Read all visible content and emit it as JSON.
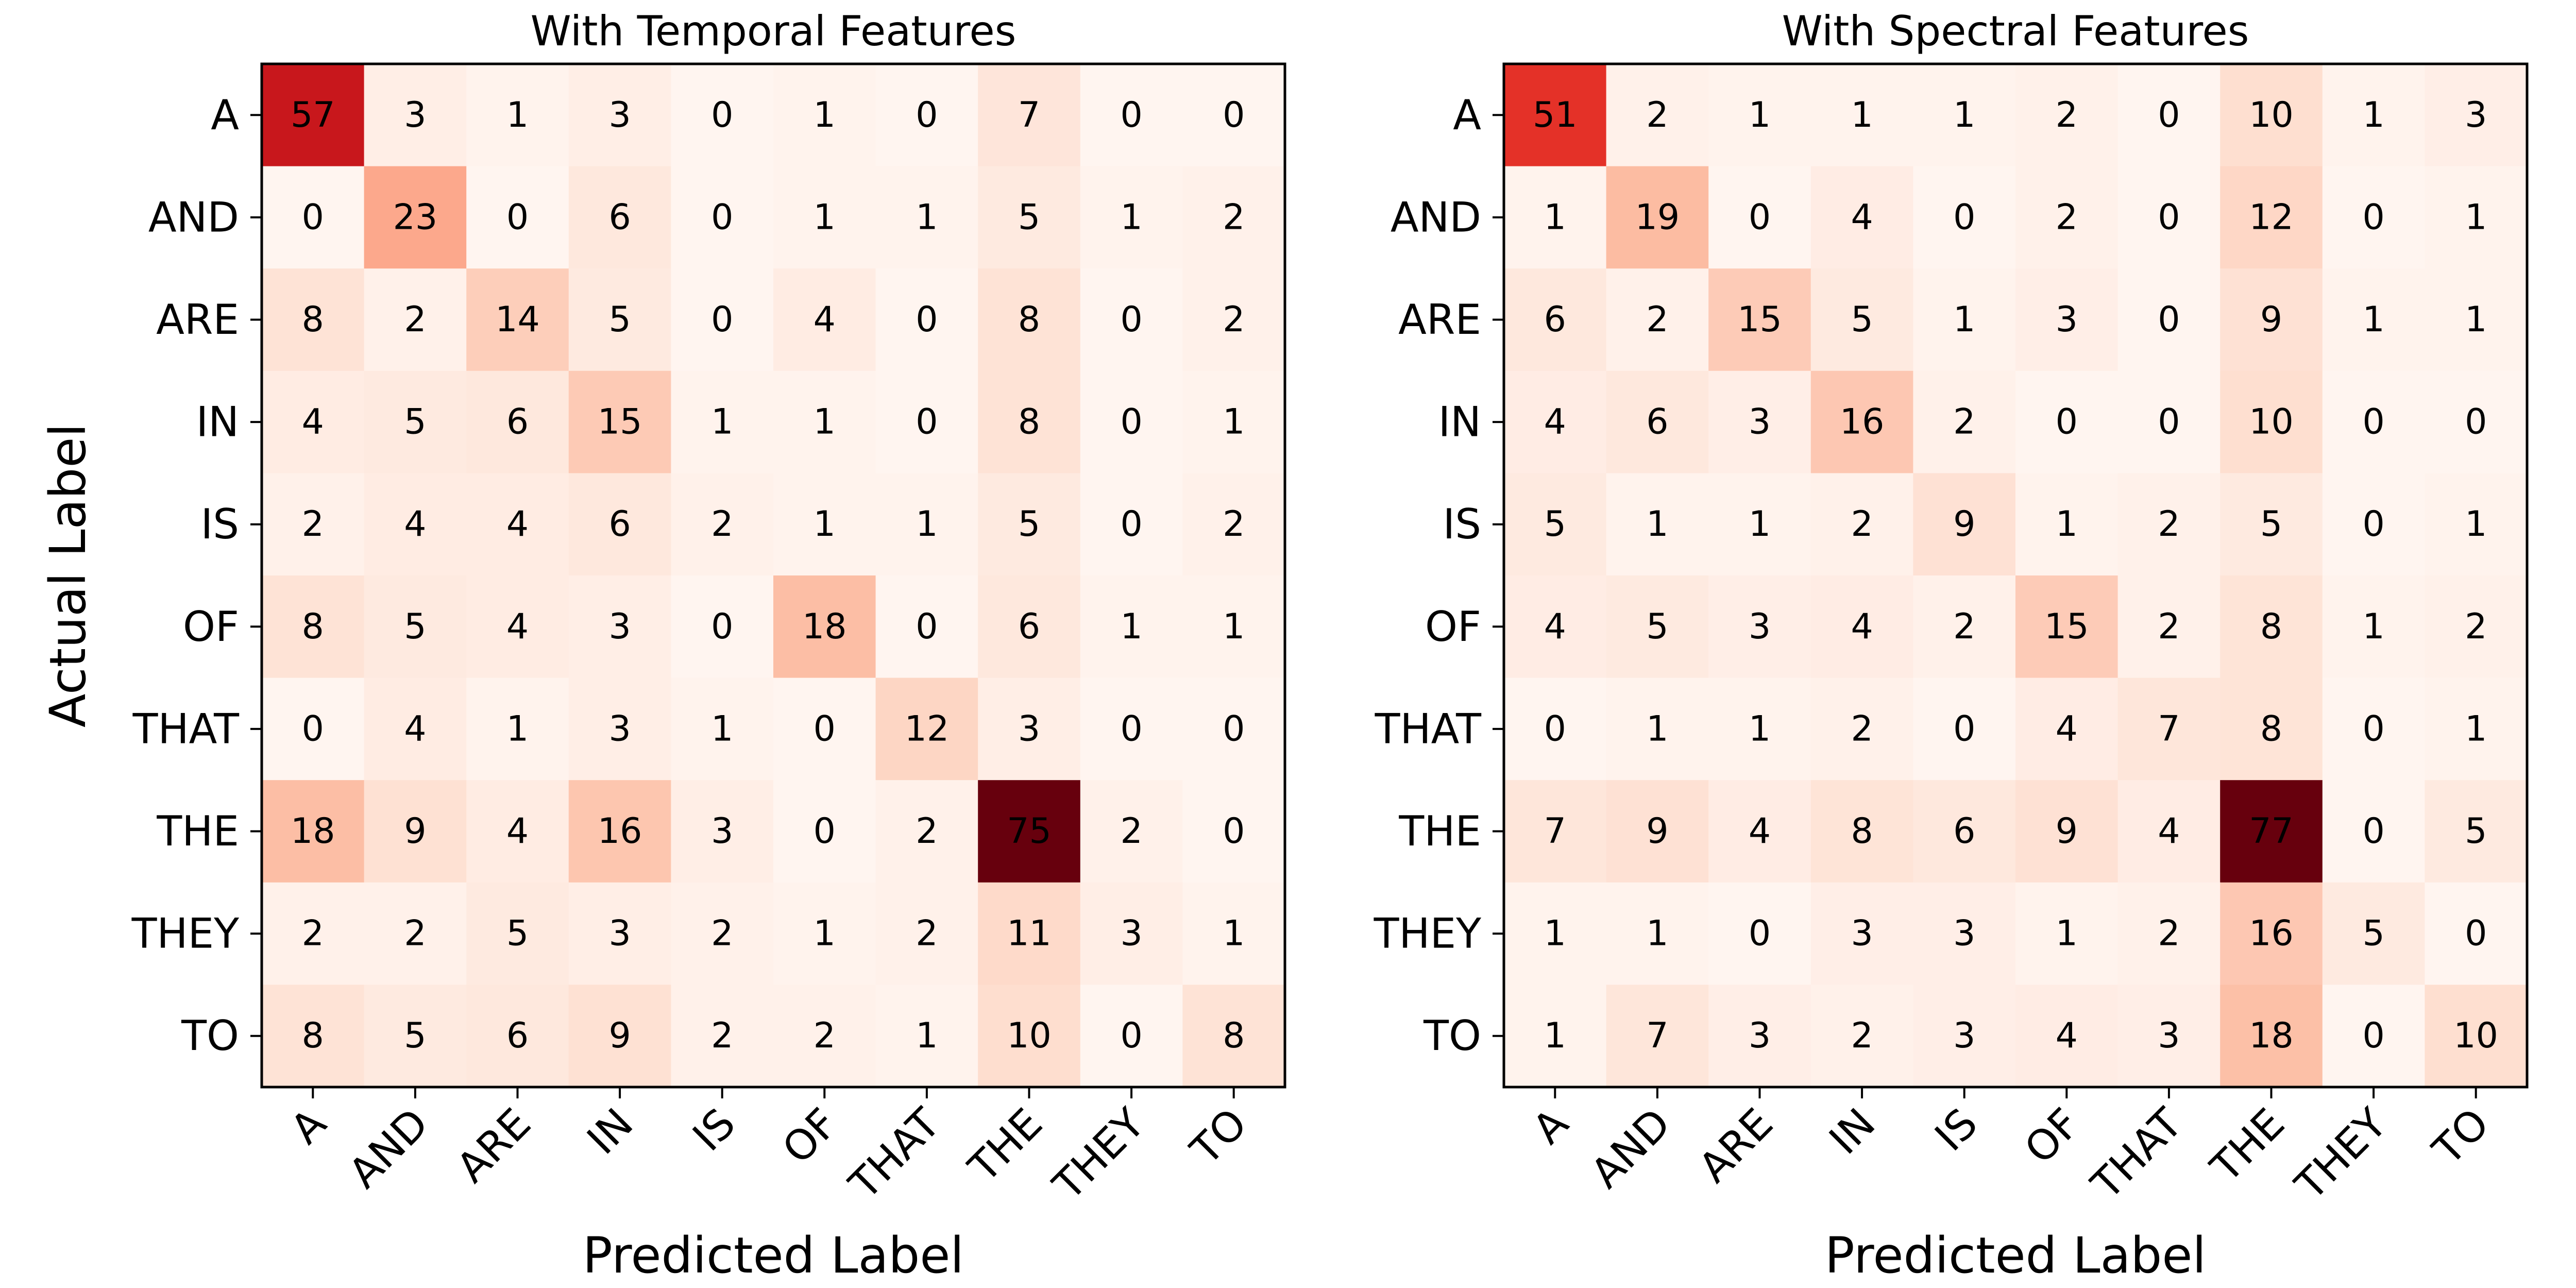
{
  "chart_data": [
    {
      "type": "heatmap",
      "title": "With Temporal Features",
      "xlabel": "Predicted Label",
      "ylabel": "Actual Label",
      "colormap": "Reds",
      "x_categories": [
        "A",
        "AND",
        "ARE",
        "IN",
        "IS",
        "OF",
        "THAT",
        "THE",
        "THEY",
        "TO"
      ],
      "y_categories": [
        "A",
        "AND",
        "ARE",
        "IN",
        "IS",
        "OF",
        "THAT",
        "THE",
        "THEY",
        "TO"
      ],
      "values": [
        [
          57,
          3,
          1,
          3,
          0,
          1,
          0,
          7,
          0,
          0
        ],
        [
          0,
          23,
          0,
          6,
          0,
          1,
          1,
          5,
          1,
          2
        ],
        [
          8,
          2,
          14,
          5,
          0,
          4,
          0,
          8,
          0,
          2
        ],
        [
          4,
          5,
          6,
          15,
          1,
          1,
          0,
          8,
          0,
          1
        ],
        [
          2,
          4,
          4,
          6,
          2,
          1,
          1,
          5,
          0,
          2
        ],
        [
          8,
          5,
          4,
          3,
          0,
          18,
          0,
          6,
          1,
          1
        ],
        [
          0,
          4,
          1,
          3,
          1,
          0,
          12,
          3,
          0,
          0
        ],
        [
          18,
          9,
          4,
          16,
          3,
          0,
          2,
          75,
          2,
          0
        ],
        [
          2,
          2,
          5,
          3,
          2,
          1,
          2,
          11,
          3,
          1
        ],
        [
          8,
          5,
          6,
          9,
          2,
          2,
          1,
          10,
          0,
          8
        ]
      ]
    },
    {
      "type": "heatmap",
      "title": "With Spectral Features",
      "xlabel": "Predicted Label",
      "ylabel": "",
      "colormap": "Reds",
      "x_categories": [
        "A",
        "AND",
        "ARE",
        "IN",
        "IS",
        "OF",
        "THAT",
        "THE",
        "THEY",
        "TO"
      ],
      "y_categories": [
        "A",
        "AND",
        "ARE",
        "IN",
        "IS",
        "OF",
        "THAT",
        "THE",
        "THEY",
        "TO"
      ],
      "values": [
        [
          51,
          2,
          1,
          1,
          1,
          2,
          0,
          10,
          1,
          3
        ],
        [
          1,
          19,
          0,
          4,
          0,
          2,
          0,
          12,
          0,
          1
        ],
        [
          6,
          2,
          15,
          5,
          1,
          3,
          0,
          9,
          1,
          1
        ],
        [
          4,
          6,
          3,
          16,
          2,
          0,
          0,
          10,
          0,
          0
        ],
        [
          5,
          1,
          1,
          2,
          9,
          1,
          2,
          5,
          0,
          1
        ],
        [
          4,
          5,
          3,
          4,
          2,
          15,
          2,
          8,
          1,
          2
        ],
        [
          0,
          1,
          1,
          2,
          0,
          4,
          7,
          8,
          0,
          1
        ],
        [
          7,
          9,
          4,
          8,
          6,
          9,
          4,
          77,
          0,
          5
        ],
        [
          1,
          1,
          0,
          3,
          3,
          1,
          2,
          16,
          5,
          0
        ],
        [
          1,
          7,
          3,
          2,
          3,
          4,
          3,
          18,
          0,
          10
        ]
      ]
    }
  ]
}
